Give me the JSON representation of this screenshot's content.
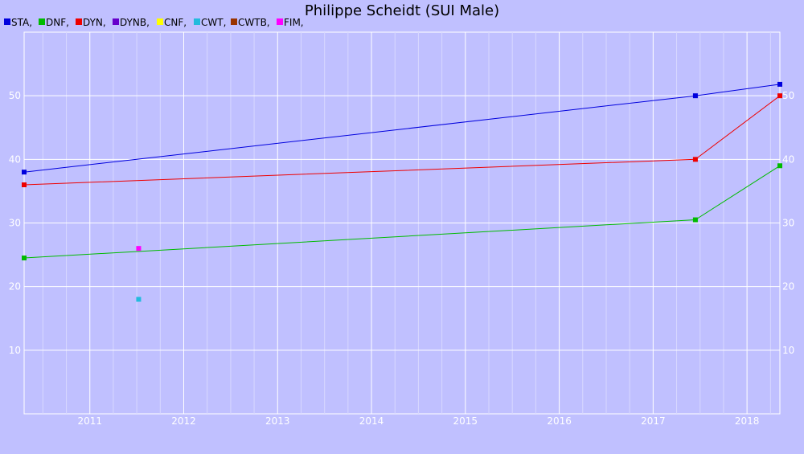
{
  "chart_data": {
    "type": "line",
    "title": "Philippe Scheidt (SUI Male)",
    "xlabel": "",
    "ylabel": "",
    "x_range": [
      2010.3,
      2018.35
    ],
    "ylim": [
      0,
      60
    ],
    "x_ticks": [
      2011,
      2012,
      2013,
      2014,
      2015,
      2016,
      2017,
      2018
    ],
    "y_ticks": [
      10,
      20,
      30,
      40,
      50
    ],
    "grid": true,
    "legend_position": "top-left",
    "legend": [
      {
        "label": "STA,",
        "color": "#0000dd"
      },
      {
        "label": "DNF,",
        "color": "#00bb00"
      },
      {
        "label": "DYN,",
        "color": "#ee0000"
      },
      {
        "label": "DYNB,",
        "color": "#6600cc"
      },
      {
        "label": "CNF,",
        "color": "#ffff00"
      },
      {
        "label": "CWT,",
        "color": "#22bbdd"
      },
      {
        "label": "CWTB,",
        "color": "#993300"
      },
      {
        "label": "FIM,",
        "color": "#ff00ff"
      }
    ],
    "series": [
      {
        "name": "STA",
        "color": "#0000dd",
        "x": [
          2010.3,
          2017.45,
          2018.35
        ],
        "y": [
          38,
          50,
          51.8
        ]
      },
      {
        "name": "DYN",
        "color": "#ee0000",
        "x": [
          2010.3,
          2017.45,
          2018.35
        ],
        "y": [
          36,
          40,
          50
        ]
      },
      {
        "name": "DNF",
        "color": "#00bb00",
        "x": [
          2010.3,
          2017.45,
          2018.35
        ],
        "y": [
          24.5,
          30.5,
          39
        ]
      },
      {
        "name": "FIM",
        "color": "#ff00ff",
        "x": [
          2011.52
        ],
        "y": [
          26
        ],
        "points_only": true
      },
      {
        "name": "CWT",
        "color": "#22bbdd",
        "x": [
          2011.52
        ],
        "y": [
          18
        ],
        "points_only": true
      }
    ]
  }
}
